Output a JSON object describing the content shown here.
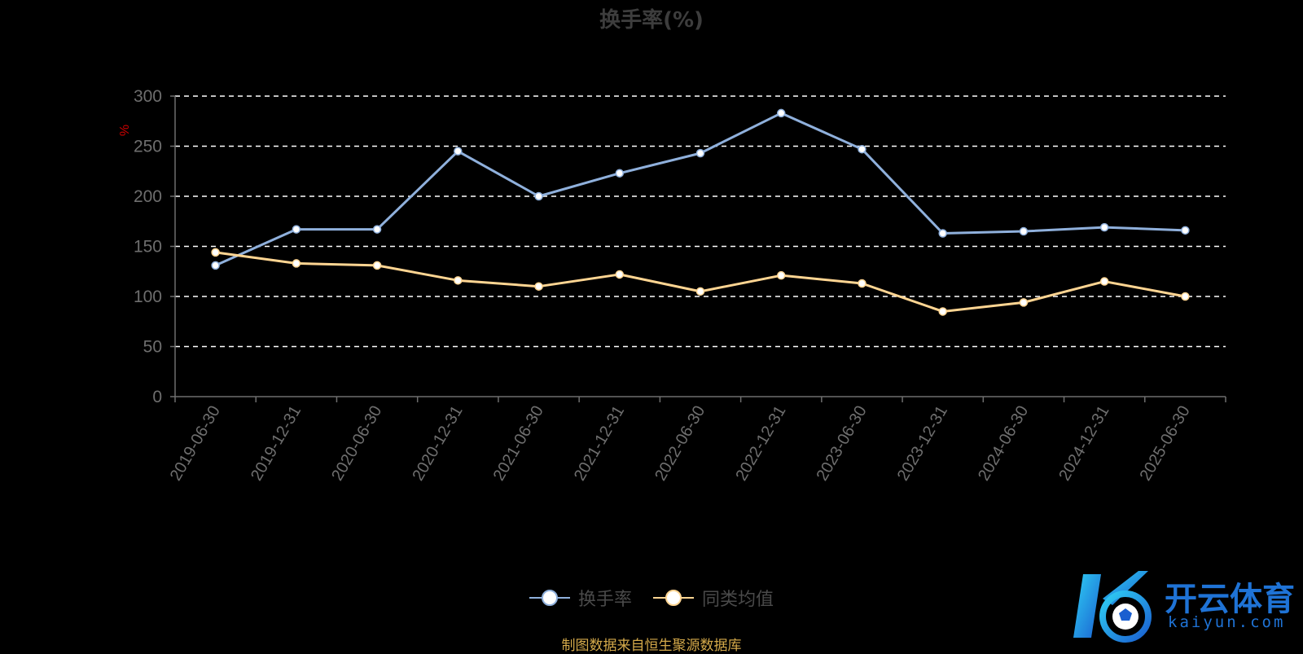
{
  "chart_data": {
    "type": "line",
    "title": "换手率(%)",
    "ylabel": "%",
    "ylim": [
      0,
      300
    ],
    "yticks": [
      0,
      50,
      100,
      150,
      200,
      250,
      300
    ],
    "grid": true,
    "legend_position": "bottom",
    "categories": [
      "2019-06-30",
      "2019-12-31",
      "2020-06-30",
      "2020-12-31",
      "2021-06-30",
      "2021-12-31",
      "2022-06-30",
      "2022-12-31",
      "2023-06-30",
      "2023-12-31",
      "2024-06-30",
      "2024-12-31",
      "2025-06-30"
    ],
    "series": [
      {
        "name": "换手率",
        "color": "#8fb0dc",
        "values": [
          131,
          167,
          167,
          245,
          200,
          223,
          243,
          283,
          247,
          163,
          165,
          169,
          166
        ]
      },
      {
        "name": "同类均值",
        "color": "#ffd592",
        "values": [
          144,
          133,
          131,
          116,
          110,
          122,
          105,
          121,
          113,
          85,
          94,
          115,
          100
        ]
      }
    ]
  },
  "footer": {
    "source": "制图数据来自恒生聚源数据库"
  },
  "watermark": {
    "brand": "开云体育",
    "domain": "kaiyun.com"
  },
  "colors": {
    "background": "#000000",
    "axis": "#6e6e6e",
    "grid": "#ffffff",
    "ylabel": "#cc0000"
  }
}
